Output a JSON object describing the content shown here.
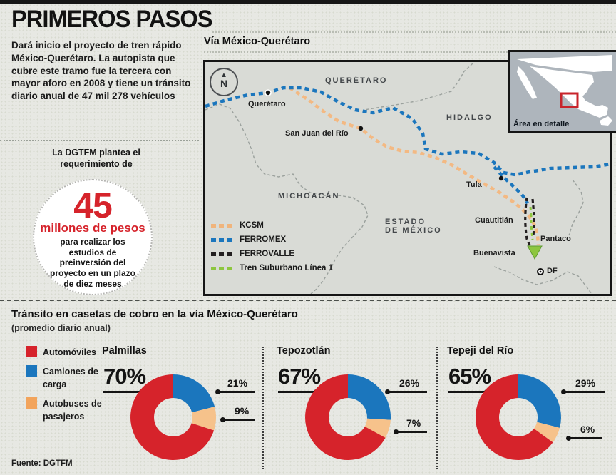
{
  "colors": {
    "red": "#d6232b",
    "blue": "#1b76bd",
    "peach": "#f6c28b",
    "orange_swatch": "#f2a45c",
    "green": "#8dc63f",
    "rail_black": "#231f20",
    "map_bg": "#d9dbd6",
    "inset_bg": "#aeb5bc",
    "inset_marker": "#c8242b"
  },
  "header": {
    "title": "PRIMEROS PASOS",
    "intro": "Dará inicio el proyecto de tren rápido México-Querétaro. La autopista que cubre este tramo fue la tercera con mayor aforo en 2008 y tiene un tránsito diario anual de 47 mil 278 vehículos"
  },
  "callout": {
    "lead": "La DGTFM plantea el requerimiento de",
    "amount": "45",
    "unit": "millones de pesos",
    "body": "para realizar los estudios de preinversión del proyecto en un plazo de diez meses"
  },
  "map": {
    "title": "Vía México-Querétaro",
    "compass": "N",
    "states": {
      "queretaro": "QUERÉTARO",
      "hidalgo": "HIDALGO",
      "michoacan": "MICHOACÁN",
      "edomex_line1": "ESTADO",
      "edomex_line2": "DE MÉXICO"
    },
    "cities": {
      "queretaro": "Querétaro",
      "san_juan": "San Juan del Río",
      "tula": "Tula",
      "cuautitlan": "Cuautitlán",
      "pantaco": "Pantaco",
      "buenavista": "Buenavista",
      "df": "DF"
    },
    "legend": [
      {
        "label": "KCSM",
        "color": "#f6c28b"
      },
      {
        "label": "FERROMEX",
        "color": "#1b76bd"
      },
      {
        "label": "FERROVALLE",
        "color": "#231f20"
      },
      {
        "label": "Tren Suburbano Línea 1",
        "color": "#8dc63f"
      }
    ],
    "inset_label": "Área en detalle"
  },
  "charts_section": {
    "title": "Tránsito en casetas de cobro en la vía México-Querétaro",
    "subtitle": "(promedio diario anual)",
    "legend": [
      {
        "label": "Automóviles",
        "color": "#d6232b"
      },
      {
        "label": "Camiones de carga",
        "color": "#1b76bd"
      },
      {
        "label": "Autobuses de pasajeros",
        "color": "#f2a45c"
      }
    ]
  },
  "chart_data": [
    {
      "type": "pie",
      "title": "Palmillas",
      "categories": [
        "Automóviles",
        "Camiones de carga",
        "Autobuses de pasajeros"
      ],
      "values": [
        70,
        21,
        9
      ],
      "labels": [
        "70%",
        "21%",
        "9%"
      ],
      "legend_position": "left",
      "unit": "%"
    },
    {
      "type": "pie",
      "title": "Tepozotlán",
      "categories": [
        "Automóviles",
        "Camiones de carga",
        "Autobuses de pasajeros"
      ],
      "values": [
        67,
        26,
        7
      ],
      "labels": [
        "67%",
        "26%",
        "7%"
      ],
      "legend_position": "left",
      "unit": "%"
    },
    {
      "type": "pie",
      "title": "Tepeji del Río",
      "categories": [
        "Automóviles",
        "Camiones de carga",
        "Autobuses de pasajeros"
      ],
      "values": [
        65,
        29,
        6
      ],
      "labels": [
        "65%",
        "29%",
        "6%"
      ],
      "legend_position": "left",
      "unit": "%"
    }
  ],
  "footer": {
    "source": "Fuente: DGTFM"
  }
}
